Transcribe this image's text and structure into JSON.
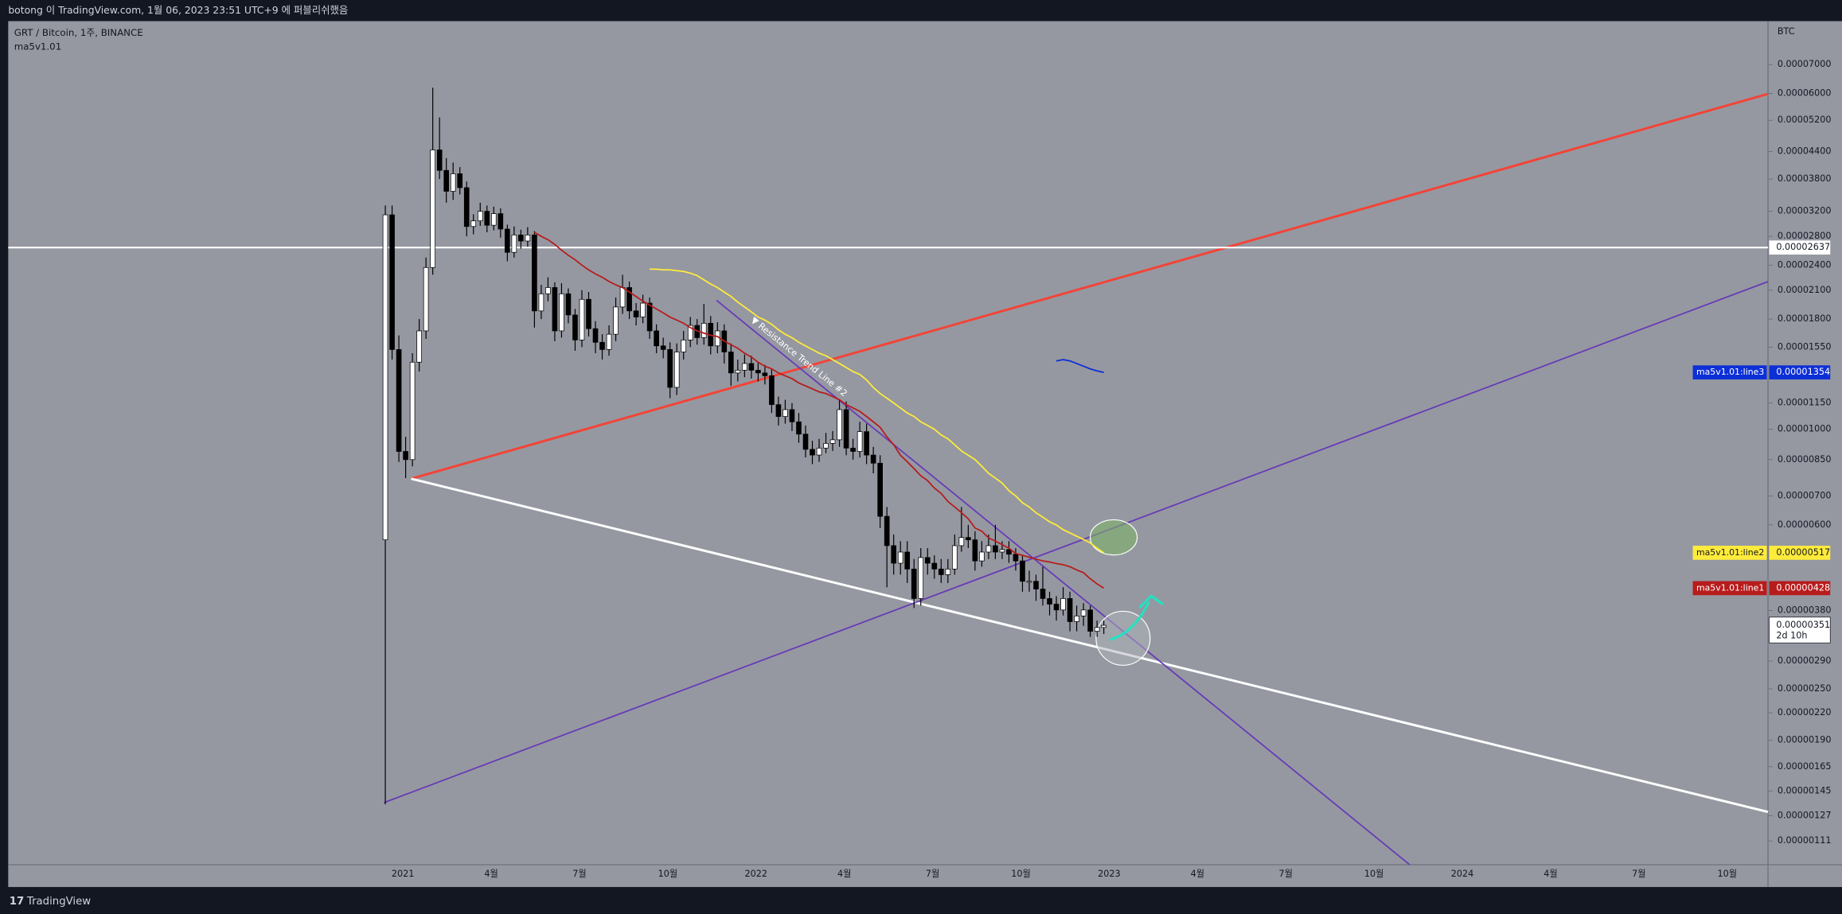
{
  "header": {
    "publish": "botong 이 TradingView.com, 1월 06, 2023 23:51 UTC+9 에 퍼블리쉬했음"
  },
  "footer": {
    "brand": "TradingView"
  },
  "chart_data": {
    "type": "candlestick",
    "title": "GRT / Bitcoin, 1주, BINANCE",
    "indicator": "ma5v1.01",
    "y_unit": "BTC",
    "log": true,
    "ylim": [
      9.78e-07,
      8.83e-05
    ],
    "yticks": [
      {
        "value": 7e-05,
        "label": "0.00007000"
      },
      {
        "value": 6e-05,
        "label": "0.00006000"
      },
      {
        "value": 5.2e-05,
        "label": "0.00005200"
      },
      {
        "value": 4.4e-05,
        "label": "0.00004400"
      },
      {
        "value": 3.8e-05,
        "label": "0.00003800"
      },
      {
        "value": 3.2e-05,
        "label": "0.00003200"
      },
      {
        "value": 2.8e-05,
        "label": "0.00002800"
      },
      {
        "value": 2.4e-05,
        "label": "0.00002400"
      },
      {
        "value": 2.1e-05,
        "label": "0.00002100"
      },
      {
        "value": 1.8e-05,
        "label": "0.00001800"
      },
      {
        "value": 1.55e-05,
        "label": "0.00001550"
      },
      {
        "value": 1.15e-05,
        "label": "0.00001150"
      },
      {
        "value": 1e-05,
        "label": "0.00001000"
      },
      {
        "value": 8.5e-06,
        "label": "0.00000850"
      },
      {
        "value": 7e-06,
        "label": "0.00000700"
      },
      {
        "value": 6e-06,
        "label": "0.00000600"
      },
      {
        "value": 3.8e-06,
        "label": "0.00000380"
      },
      {
        "value": 2.9e-06,
        "label": "0.00000290"
      },
      {
        "value": 2.5e-06,
        "label": "0.00000250"
      },
      {
        "value": 2.2e-06,
        "label": "0.00000220"
      },
      {
        "value": 1.9e-06,
        "label": "0.00000190"
      },
      {
        "value": 1.65e-06,
        "label": "0.00000165"
      },
      {
        "value": 1.45e-06,
        "label": "0.00000145"
      },
      {
        "value": 1.27e-06,
        "label": "0.00000127"
      },
      {
        "value": 1.11e-06,
        "label": "0.00000111"
      }
    ],
    "x_labels": [
      "2021",
      "4월",
      "7월",
      "10월",
      "2022",
      "4월",
      "7월",
      "10월",
      "2023",
      "4월",
      "7월",
      "10월",
      "2024",
      "4월",
      "7월",
      "10월"
    ],
    "candles": {
      "up_color": "#ffffff",
      "down_color": "#000000",
      "last_label": "0.00000351",
      "countdown": "2d 10h",
      "open": [
        5.54e-06,
        3.14e-05,
        1.53e-05,
        8.88e-06,
        8.5e-06,
        1.43e-05,
        1.69e-05,
        2.37e-05,
        4.44e-05,
        3.98e-05,
        3.56e-05,
        3.91e-05,
        3.63e-05,
        2.95e-05,
        3.04e-05,
        3.2e-05,
        2.97e-05,
        3.16e-05,
        2.91e-05,
        2.57e-05,
        2.82e-05,
        2.73e-05,
        2.82e-05,
        1.88e-05,
        2.06e-05,
        2.13e-05,
        1.69e-05,
        2.06e-05,
        1.84e-05,
        1.61e-05,
        2e-05,
        1.71e-05,
        1.59e-05,
        1.53e-05,
        1.66e-05,
        1.92e-05,
        2.13e-05,
        1.88e-05,
        1.82e-05,
        1.96e-05,
        1.69e-05,
        1.56e-05,
        1.53e-05,
        1.25e-05,
        1.51e-05,
        1.61e-05,
        1.74e-05,
        1.63e-05,
        1.76e-05,
        1.56e-05,
        1.69e-05,
        1.51e-05,
        1.35e-05,
        1.37e-05,
        1.42e-05,
        1.37e-05,
        1.35e-05,
        1.33e-05,
        1.14e-05,
        1.07e-05,
        1.11e-05,
        1.04e-05,
        9.74e-06,
        8.98e-06,
        8.71e-06,
        9.04e-06,
        9.27e-06,
        9.45e-06,
        1.11e-05,
        9.04e-06,
        8.88e-06,
        9.87e-06,
        8.71e-06,
        8.34e-06,
        6.28e-06,
        5.37e-06,
        4.89e-06,
        5.19e-06,
        4.74e-06,
        4.05e-06,
        5.04e-06,
        4.89e-06,
        4.74e-06,
        4.6e-06,
        4.74e-06,
        5.37e-06,
        5.61e-06,
        5.54e-06,
        4.95e-06,
        5.19e-06,
        5.37e-06,
        5.19e-06,
        5.26e-06,
        5.13e-06,
        4.95e-06,
        4.44e-06,
        4.44e-06,
        4.26e-06,
        4.05e-06,
        3.93e-06,
        3.81e-06,
        4.05e-06,
        3.58e-06,
        3.69e-06,
        3.81e-06,
        3.4e-06,
        3.47e-06
      ],
      "high": [
        3.3e-05,
        3.3e-05,
        1.65e-05,
        9.6e-06,
        1.5e-05,
        1.8e-05,
        2.5e-05,
        6.19e-05,
        5.28e-05,
        4.25e-05,
        4.15e-05,
        4.05e-05,
        3.75e-05,
        3.15e-05,
        3.35e-05,
        3.3e-05,
        3.28e-05,
        3.25e-05,
        2.98e-05,
        2.95e-05,
        2.9e-05,
        2.94e-05,
        2.88e-05,
        2.16e-05,
        2.25e-05,
        2.19e-05,
        2.18e-05,
        2.12e-05,
        1.9e-05,
        2.1e-05,
        2.08e-05,
        1.78e-05,
        1.66e-05,
        1.74e-05,
        2.02e-05,
        2.28e-05,
        2.2e-05,
        1.96e-05,
        2.05e-05,
        2.02e-05,
        1.75e-05,
        1.63e-05,
        1.59e-05,
        1.58e-05,
        1.69e-05,
        1.82e-05,
        1.8e-05,
        1.95e-05,
        1.83e-05,
        1.77e-05,
        1.75e-05,
        1.58e-05,
        1.45e-05,
        1.49e-05,
        1.48e-05,
        1.43e-05,
        1.41e-05,
        1.38e-05,
        1.19e-05,
        1.17e-05,
        1.15e-05,
        1.09e-05,
        1.02e-05,
        9.4e-06,
        9.5e-06,
        9.8e-06,
        9.9e-06,
        1.17e-05,
        1.16e-05,
        9.5e-06,
        1.04e-05,
        1.03e-05,
        9.1e-06,
        8.7e-06,
        6.6e-06,
        5.7e-06,
        5.5e-06,
        5.5e-06,
        5e-06,
        5.3e-06,
        5.3e-06,
        5.1e-06,
        5e-06,
        5e-06,
        5.7e-06,
        6.6e-06,
        6e-06,
        5.8e-06,
        5.5e-06,
        5.7e-06,
        6e-06,
        5.5e-06,
        5.5e-06,
        5.3e-06,
        5.1e-06,
        4.7e-06,
        4.6e-06,
        4.8e-06,
        4.2e-06,
        4.1e-06,
        4.3e-06,
        4.2e-06,
        3.9e-06,
        3.95e-06,
        3.9e-06,
        3.6e-06,
        3.6e-06
      ],
      "low": [
        1.35e-06,
        1.45e-05,
        8.4e-06,
        7.7e-06,
        8.2e-06,
        1.36e-05,
        1.62e-05,
        2.28e-05,
        3.8e-05,
        3.35e-05,
        3.4e-05,
        3.5e-05,
        2.8e-05,
        2.83e-05,
        2.96e-05,
        2.86e-05,
        2.89e-05,
        2.78e-05,
        2.45e-05,
        2.5e-05,
        2.62e-05,
        2.65e-05,
        1.72e-05,
        1.8e-05,
        1.98e-05,
        1.6e-05,
        1.63e-05,
        1.76e-05,
        1.52e-05,
        1.55e-05,
        1.64e-05,
        1.5e-05,
        1.45e-05,
        1.48e-05,
        1.6e-05,
        1.85e-05,
        1.8e-05,
        1.74e-05,
        1.76e-05,
        1.62e-05,
        1.5e-05,
        1.46e-05,
        1.18e-05,
        1.2e-05,
        1.45e-05,
        1.55e-05,
        1.57e-05,
        1.57e-05,
        1.49e-05,
        1.5e-05,
        1.42e-05,
        1.26e-05,
        1.29e-05,
        1.32e-05,
        1.31e-05,
        1.29e-05,
        1.27e-05,
        1.09e-05,
        1.02e-05,
        1.03e-05,
        9.9e-06,
        9.3e-06,
        8.6e-06,
        8.3e-06,
        8.4e-06,
        8.8e-06,
        8.9e-06,
        9.1e-06,
        8.7e-06,
        8.5e-06,
        8.6e-06,
        8.3e-06,
        7.9e-06,
        5.9e-06,
        4.3e-06,
        4.6e-06,
        4.6e-06,
        4.4e-06,
        3.85e-06,
        3.9e-06,
        4.6e-06,
        4.5e-06,
        4.4e-06,
        4.4e-06,
        4.6e-06,
        5.2e-06,
        5.3e-06,
        4.7e-06,
        4.8e-06,
        5e-06,
        5e-06,
        5e-06,
        4.9e-06,
        4.7e-06,
        4.2e-06,
        4.2e-06,
        4e-06,
        3.9e-06,
        3.7e-06,
        3.6e-06,
        3.7e-06,
        3.4e-06,
        3.4e-06,
        3.5e-06,
        3.3e-06,
        3.3e-06,
        3.35e-06
      ],
      "close": [
        3.14e-05,
        1.53e-05,
        8.88e-06,
        8.5e-06,
        1.43e-05,
        1.69e-05,
        2.37e-05,
        4.44e-05,
        3.98e-05,
        3.56e-05,
        3.91e-05,
        3.63e-05,
        2.95e-05,
        3.04e-05,
        3.2e-05,
        2.97e-05,
        3.16e-05,
        2.91e-05,
        2.57e-05,
        2.82e-05,
        2.73e-05,
        2.82e-05,
        1.88e-05,
        2.06e-05,
        2.13e-05,
        1.69e-05,
        2.06e-05,
        1.84e-05,
        1.61e-05,
        2e-05,
        1.71e-05,
        1.59e-05,
        1.53e-05,
        1.66e-05,
        1.92e-05,
        2.13e-05,
        1.88e-05,
        1.82e-05,
        1.96e-05,
        1.69e-05,
        1.56e-05,
        1.53e-05,
        1.25e-05,
        1.51e-05,
        1.61e-05,
        1.74e-05,
        1.63e-05,
        1.76e-05,
        1.56e-05,
        1.69e-05,
        1.51e-05,
        1.35e-05,
        1.37e-05,
        1.42e-05,
        1.37e-05,
        1.35e-05,
        1.33e-05,
        1.14e-05,
        1.07e-05,
        1.11e-05,
        1.04e-05,
        9.74e-06,
        8.98e-06,
        8.71e-06,
        9.04e-06,
        9.27e-06,
        9.45e-06,
        1.11e-05,
        9.04e-06,
        8.88e-06,
        9.87e-06,
        8.71e-06,
        8.34e-06,
        6.28e-06,
        5.37e-06,
        4.89e-06,
        5.19e-06,
        4.74e-06,
        4.05e-06,
        5.04e-06,
        4.89e-06,
        4.74e-06,
        4.6e-06,
        4.74e-06,
        5.37e-06,
        5.61e-06,
        5.54e-06,
        4.95e-06,
        5.19e-06,
        5.37e-06,
        5.19e-06,
        5.26e-06,
        5.13e-06,
        4.95e-06,
        4.44e-06,
        4.44e-06,
        4.26e-06,
        4.05e-06,
        3.93e-06,
        3.81e-06,
        4.05e-06,
        3.58e-06,
        3.69e-06,
        3.81e-06,
        3.4e-06,
        3.47e-06,
        3.51e-06
      ]
    },
    "series": [
      {
        "name": "ma5v1.01:line1",
        "color": "#b71c1c",
        "label": "0.00000428",
        "values": [
          null,
          null,
          null,
          null,
          null,
          null,
          null,
          null,
          null,
          null,
          null,
          null,
          null,
          null,
          null,
          null,
          null,
          null,
          null,
          null,
          null,
          null,
          2.86e-05,
          2.8e-05,
          2.75e-05,
          2.68e-05,
          2.6e-05,
          2.53e-05,
          2.47e-05,
          2.4e-05,
          2.34e-05,
          2.29e-05,
          2.25e-05,
          2.2e-05,
          2.16e-05,
          2.13e-05,
          2.08e-05,
          2.03e-05,
          1.98e-05,
          1.94e-05,
          1.9e-05,
          1.86e-05,
          1.82e-05,
          1.79e-05,
          1.76e-05,
          1.72e-05,
          1.69e-05,
          1.67e-05,
          1.65e-05,
          1.64e-05,
          1.6e-05,
          1.57e-05,
          1.54e-05,
          1.5e-05,
          1.47e-05,
          1.43e-05,
          1.4e-05,
          1.38e-05,
          1.35e-05,
          1.33e-05,
          1.31e-05,
          1.28e-05,
          1.26e-05,
          1.24e-05,
          1.22e-05,
          1.21e-05,
          1.19e-05,
          1.17e-05,
          1.14e-05,
          1.12e-05,
          1.1e-05,
          1.07e-05,
          1.04e-05,
          1.01e-05,
          9.6e-06,
          9.2e-06,
          8.7e-06,
          8.4e-06,
          8.1e-06,
          7.8e-06,
          7.6e-06,
          7.3e-06,
          7.1e-06,
          6.8e-06,
          6.6e-06,
          6.4e-06,
          6.2e-06,
          5.9e-06,
          5.8e-06,
          5.6e-06,
          5.5e-06,
          5.4e-06,
          5.3e-06,
          5.15e-06,
          5.1e-06,
          5.05e-06,
          5e-06,
          4.95e-06,
          4.92e-06,
          4.88e-06,
          4.85e-06,
          4.8e-06,
          4.72e-06,
          4.65e-06,
          4.5e-06,
          4.38e-06,
          4.28e-06
        ]
      },
      {
        "name": "ma5v1.01:line2",
        "color": "#ffeb3b",
        "label": "0.00000517",
        "values": [
          null,
          null,
          null,
          null,
          null,
          null,
          null,
          null,
          null,
          null,
          null,
          null,
          null,
          null,
          null,
          null,
          null,
          null,
          null,
          null,
          null,
          null,
          null,
          null,
          null,
          null,
          null,
          null,
          null,
          null,
          null,
          null,
          null,
          null,
          null,
          null,
          null,
          null,
          null,
          2.35e-05,
          2.35e-05,
          2.34e-05,
          2.34e-05,
          2.33e-05,
          2.32e-05,
          2.3e-05,
          2.27e-05,
          2.22e-05,
          2.17e-05,
          2.13e-05,
          2.08e-05,
          2.03e-05,
          1.97e-05,
          1.92e-05,
          1.87e-05,
          1.82e-05,
          1.79e-05,
          1.75e-05,
          1.7e-05,
          1.66e-05,
          1.63e-05,
          1.59e-05,
          1.56e-05,
          1.53e-05,
          1.5e-05,
          1.48e-05,
          1.45e-05,
          1.42e-05,
          1.39e-05,
          1.36e-05,
          1.34e-05,
          1.3e-05,
          1.25e-05,
          1.21e-05,
          1.18e-05,
          1.15e-05,
          1.12e-05,
          1.09e-05,
          1.07e-05,
          1.04e-05,
          1.02e-05,
          1e-05,
          9.7e-06,
          9.5e-06,
          9.2e-06,
          8.9e-06,
          8.7e-06,
          8.5e-06,
          8.2e-06,
          7.9e-06,
          7.7e-06,
          7.5e-06,
          7.2e-06,
          7e-06,
          6.75e-06,
          6.6e-06,
          6.4e-06,
          6.25e-06,
          6.1e-06,
          6e-06,
          5.85e-06,
          5.75e-06,
          5.65e-06,
          5.55e-06,
          5.45e-06,
          5.3e-06,
          5.17e-06
        ]
      },
      {
        "name": "ma5v1.01:line3",
        "color": "#0d2fd6",
        "label": "0.00001354",
        "values": [
          null,
          null,
          null,
          null,
          null,
          null,
          null,
          null,
          null,
          null,
          null,
          null,
          null,
          null,
          null,
          null,
          null,
          null,
          null,
          null,
          null,
          null,
          null,
          null,
          null,
          null,
          null,
          null,
          null,
          null,
          null,
          null,
          null,
          null,
          null,
          null,
          null,
          null,
          null,
          null,
          null,
          null,
          null,
          null,
          null,
          null,
          null,
          null,
          null,
          null,
          null,
          null,
          null,
          null,
          null,
          null,
          null,
          null,
          null,
          null,
          null,
          null,
          null,
          null,
          null,
          null,
          null,
          null,
          null,
          null,
          null,
          null,
          null,
          null,
          null,
          null,
          null,
          null,
          null,
          null,
          null,
          null,
          null,
          null,
          null,
          null,
          null,
          null,
          null,
          null,
          null,
          null,
          null,
          null,
          null,
          null,
          null,
          null,
          null,
          1.44e-05,
          1.45e-05,
          1.44e-05,
          1.42e-05,
          1.4e-05,
          1.38e-05,
          1.365e-05,
          1.354e-05
        ]
      }
    ],
    "hline": {
      "value": 2.637e-05,
      "label": "0.00002637"
    },
    "annotation": "▼ Resistance Trend Line #2"
  }
}
